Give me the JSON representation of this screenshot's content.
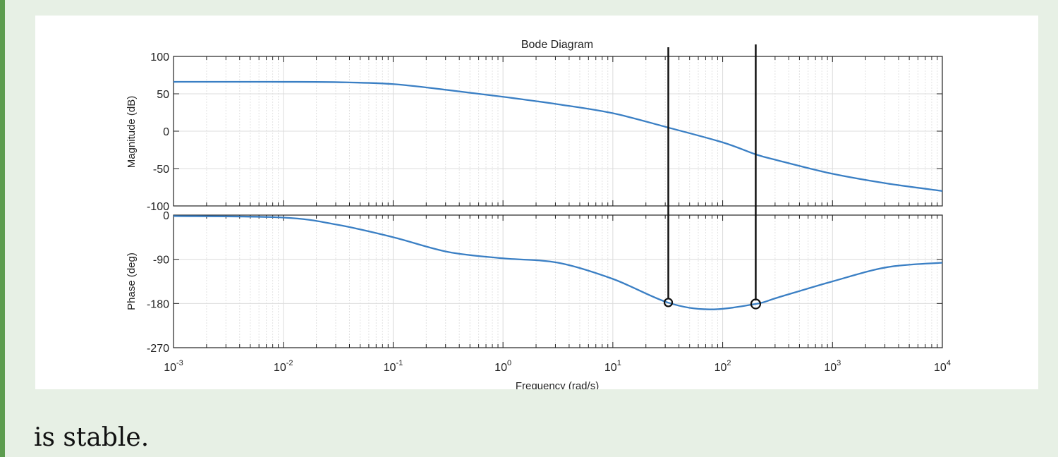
{
  "caption": "is stable.",
  "chart_data": {
    "type": "line",
    "title": "Bode Diagram",
    "xlabel": "Frequency  (rad/s)",
    "xscale": "log",
    "xlim": [
      0.001,
      10000
    ],
    "xticks": [
      {
        "base": "10",
        "exp": "-3"
      },
      {
        "base": "10",
        "exp": "-2"
      },
      {
        "base": "10",
        "exp": "-1"
      },
      {
        "base": "10",
        "exp": "0"
      },
      {
        "base": "10",
        "exp": "1"
      },
      {
        "base": "10",
        "exp": "2"
      },
      {
        "base": "10",
        "exp": "3"
      },
      {
        "base": "10",
        "exp": "4"
      }
    ],
    "grid": true,
    "color": "#3a7fc4",
    "panels": [
      {
        "name": "magnitude",
        "ylabel": "Magnitude (dB)",
        "ylim": [
          -100,
          100
        ],
        "yticks": [
          "100",
          "50",
          "0",
          "-50",
          "-100"
        ],
        "ytick_values": [
          100,
          50,
          0,
          -50,
          -100
        ],
        "log10_w": [
          -3,
          -2,
          -1.5,
          -1,
          -0.5,
          0,
          0.5,
          1,
          1.5,
          2,
          2.3,
          2.5,
          3,
          3.5,
          4
        ],
        "values": [
          66,
          66,
          65.5,
          63,
          55,
          46,
          36,
          24,
          5,
          -15,
          -31,
          -39,
          -57,
          -70,
          -80
        ]
      },
      {
        "name": "phase",
        "ylabel": "Phase (deg)",
        "ylim": [
          -270,
          0
        ],
        "yticks": [
          "0",
          "-90",
          "-180",
          "-270"
        ],
        "ytick_values": [
          0,
          -90,
          -180,
          -270
        ],
        "log10_w": [
          -3,
          -2,
          -1.5,
          -1,
          -0.5,
          0,
          0.5,
          1,
          1.5,
          1.88,
          2.3,
          2.5,
          3,
          3.5,
          4
        ],
        "values": [
          -2,
          -5,
          -20,
          -45,
          -75,
          -88,
          -97,
          -130,
          -178,
          -192,
          -181,
          -168,
          -135,
          -106,
          -97
        ]
      }
    ],
    "annotations": [
      {
        "label": "marker",
        "frequency": 32,
        "phase": -178
      },
      {
        "label": "marker",
        "frequency": 200,
        "phase": -181
      }
    ]
  }
}
